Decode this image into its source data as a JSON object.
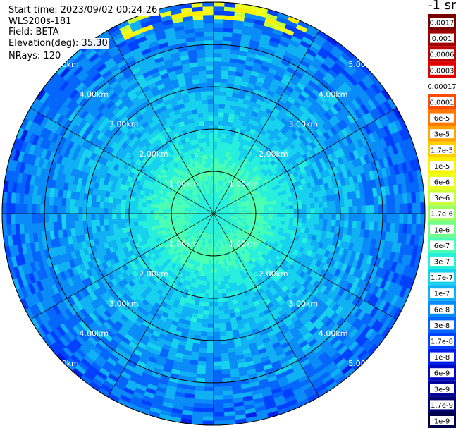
{
  "info": {
    "start_time": "Start time: 2023/09/02 00:24:26",
    "instrument": "WLS200s-181",
    "field": "Field: BETA",
    "elevation": "Elevation(deg): 35.30",
    "nrays": "NRays: 120"
  },
  "colorbar": {
    "units": "-1 sr",
    "levels": [
      {
        "label": "0.0017",
        "color": "#7a0000"
      },
      {
        "label": "0.001",
        "color": "#9e0000"
      },
      {
        "label": "0.0006",
        "color": "#c00000"
      },
      {
        "label": "0.0003",
        "color": "#e10000"
      },
      {
        "label": "0.00017",
        "color": "#ffffff"
      },
      {
        "label": "0.0001",
        "color": "#ff4a00"
      },
      {
        "label": "6e-5",
        "color": "#ff7800"
      },
      {
        "label": "3e-5",
        "color": "#ffa300"
      },
      {
        "label": "1.7e-5",
        "color": "#ffd000"
      },
      {
        "label": "1e-5",
        "color": "#fff000"
      },
      {
        "label": "6e-6",
        "color": "#eeff20"
      },
      {
        "label": "3e-6",
        "color": "#c8ff3a"
      },
      {
        "label": "1.7e-6",
        "color": "#9cff60"
      },
      {
        "label": "1e-6",
        "color": "#72ff8a"
      },
      {
        "label": "6e-7",
        "color": "#4affb4"
      },
      {
        "label": "3e-7",
        "color": "#26f0dc"
      },
      {
        "label": "1.7e-7",
        "color": "#16d2ee"
      },
      {
        "label": "1e-7",
        "color": "#10b0f4"
      },
      {
        "label": "6e-8",
        "color": "#0a8cf8"
      },
      {
        "label": "3e-8",
        "color": "#0566fc"
      },
      {
        "label": "1.7e-8",
        "color": "#0040ff"
      },
      {
        "label": "1e-8",
        "color": "#0020ea"
      },
      {
        "label": "6e-9",
        "color": "#0008c4"
      },
      {
        "label": "3e-9",
        "color": "#00009a"
      },
      {
        "label": "1.7e-9",
        "color": "#000070"
      },
      {
        "label": "1e-9",
        "color": "#00004a"
      }
    ]
  },
  "chart_data": {
    "type": "heatmap",
    "projection": "polar (PPI scan)",
    "field": "BETA",
    "units": "-1 sr",
    "n_rays": 120,
    "range_rings_km": [
      1.0,
      2.0,
      3.0,
      4.0,
      5.0
    ],
    "range_labels": [
      "1.00km",
      "2.00km",
      "3.00km",
      "4.00km",
      "5.00km"
    ],
    "spoke_angles_deg": [
      0,
      30,
      60,
      90,
      120,
      150,
      180,
      210,
      240,
      270,
      300,
      330
    ],
    "max_range_km": 5.0,
    "values_by_range": [
      {
        "range_km": 0.25,
        "beta": 3e-07
      },
      {
        "range_km": 1.0,
        "beta": 6e-07
      },
      {
        "range_km": 1.5,
        "beta": 3e-07
      },
      {
        "range_km": 2.0,
        "beta": 1.7e-07
      },
      {
        "range_km": 3.0,
        "beta": 1e-07
      },
      {
        "range_km": 4.0,
        "beta": 6e-08
      },
      {
        "range_km": 5.0,
        "beta": 3e-08
      }
    ],
    "note_sector": {
      "azimuth_from_deg": -28,
      "azimuth_to_deg": 28,
      "range_from_km": 4.6,
      "range_to_km": 5.2,
      "beta": 6e-06
    }
  }
}
